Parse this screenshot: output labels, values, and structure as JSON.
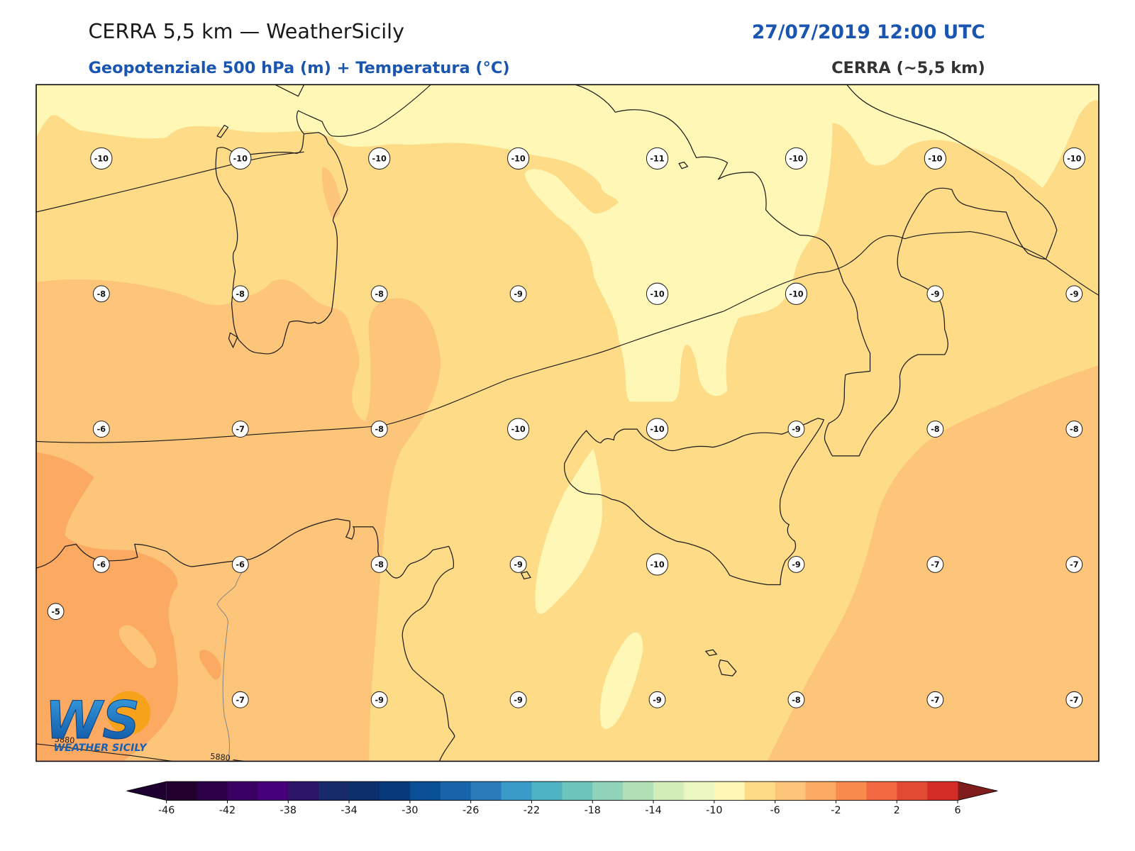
{
  "header": {
    "title": "CERRA 5,5 km — WeatherSicily",
    "datetime": "27/07/2019 12:00 UTC",
    "subtitle": "Geopotenziale 500 hPa (m) + Temperatura (°C)",
    "model": "CERRA (~5,5 km)"
  },
  "map": {
    "temperature_grid": [
      [
        -10,
        -10,
        -10,
        -10,
        -11,
        -10,
        -10,
        -10
      ],
      [
        -8,
        -8,
        -8,
        -9,
        -10,
        -10,
        -9,
        -9
      ],
      [
        -6,
        -7,
        -8,
        -10,
        -10,
        -9,
        -8,
        -8
      ],
      [
        -6,
        -6,
        -8,
        -9,
        -10,
        -9,
        -7,
        -7
      ],
      [
        null,
        -7,
        -9,
        -9,
        -9,
        -8,
        -7,
        -7
      ]
    ],
    "extra_temperature": -5,
    "contour_labels": [
      "5880",
      "5880"
    ]
  },
  "logo": {
    "mark": "WS",
    "text": "WEATHER SICILY"
  },
  "colorbar": {
    "lim": [
      -46,
      6
    ],
    "ticks": [
      -46,
      -42,
      -38,
      -34,
      -30,
      -26,
      -22,
      -18,
      -14,
      -10,
      -6,
      -2,
      2,
      6
    ],
    "colors": [
      "#22002e",
      "#2c0047",
      "#3a0064",
      "#47007a",
      "#2b1669",
      "#172a6a",
      "#0b306b",
      "#08397a",
      "#084f96",
      "#1764ab",
      "#2b7bba",
      "#3a9bc8",
      "#4eb3c3",
      "#6cc5bd",
      "#8fd3bb",
      "#b2e0b6",
      "#d3edb9",
      "#ebf7c0",
      "#fef7b5",
      "#fddb87",
      "#fdc57a",
      "#fcaa62",
      "#f88a4e",
      "#f26841",
      "#e34a33",
      "#d42d27"
    ],
    "extend_min_color": "#1e0030",
    "extend_max_color": "#7f1d1d"
  }
}
